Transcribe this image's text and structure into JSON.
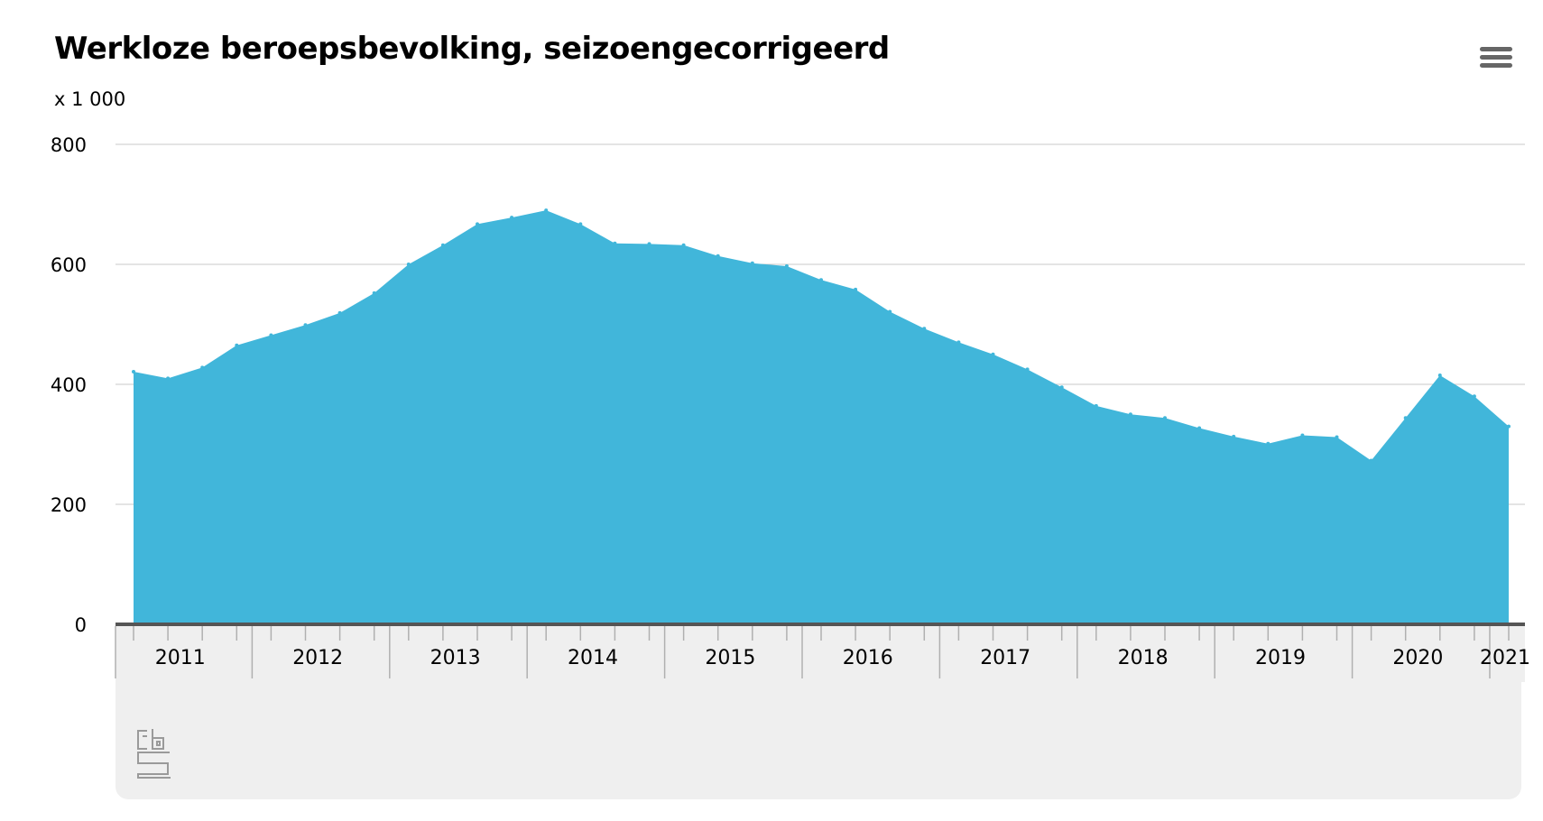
{
  "title": "Werkloze beroepsbevolking, seizoengecorrigeerd",
  "unit_label": "x 1 000",
  "menu_icon": "hamburger-menu-icon",
  "logo_icon": "cbs-logo-icon",
  "colors": {
    "area": "#41b6da",
    "grid": "#c8c8c8",
    "axis": "#555555",
    "panel": "#efefef"
  },
  "chart_data": {
    "type": "area",
    "title": "Werkloze beroepsbevolking, seizoengecorrigeerd",
    "ylabel": "x 1 000",
    "ylim": [
      0,
      800
    ],
    "yticks": [
      0,
      200,
      400,
      600,
      800
    ],
    "grid": true,
    "xlabels": [
      "2011",
      "2012",
      "2013",
      "2014",
      "2015",
      "2016",
      "2017",
      "2018",
      "2019",
      "2020",
      "2021"
    ],
    "x": [
      "2011-Q1",
      "2011-Q2",
      "2011-Q3",
      "2011-Q4",
      "2012-Q1",
      "2012-Q2",
      "2012-Q3",
      "2012-Q4",
      "2013-Q1",
      "2013-Q2",
      "2013-Q3",
      "2013-Q4",
      "2014-Q1",
      "2014-Q2",
      "2014-Q3",
      "2014-Q4",
      "2015-Q1",
      "2015-Q2",
      "2015-Q3",
      "2015-Q4",
      "2016-Q1",
      "2016-Q2",
      "2016-Q3",
      "2016-Q4",
      "2017-Q1",
      "2017-Q2",
      "2017-Q3",
      "2017-Q4",
      "2018-Q1",
      "2018-Q2",
      "2018-Q3",
      "2018-Q4",
      "2019-Q1",
      "2019-Q2",
      "2019-Q3",
      "2019-Q4",
      "2020-Q1",
      "2020-Q2",
      "2020-Q3",
      "2020-Q4",
      "2021-Q1"
    ],
    "values": [
      421,
      410,
      428,
      465,
      482,
      499,
      519,
      552,
      600,
      632,
      667,
      678,
      690,
      667,
      635,
      634,
      632,
      614,
      602,
      597,
      574,
      558,
      521,
      493,
      470,
      450,
      425,
      395,
      364,
      350,
      344,
      327,
      313,
      301,
      315,
      312,
      273,
      344,
      415,
      380,
      330
    ]
  }
}
